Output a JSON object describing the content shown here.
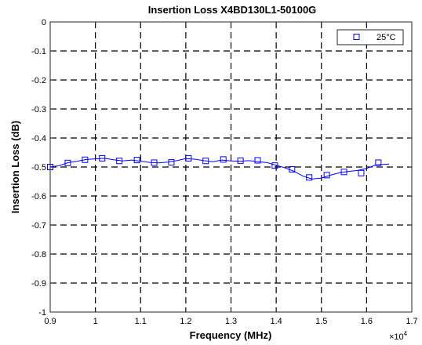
{
  "chart_data": {
    "type": "line",
    "title": "Insertion Loss  X4BD130L1-50100G",
    "xlabel": "Frequency (MHz)",
    "ylabel": "Insertion Loss (dB)",
    "x_multiplier_label": "×10",
    "x_multiplier_exponent": "4",
    "xlim": [
      0.9,
      1.7
    ],
    "ylim": [
      -1,
      0
    ],
    "xticks": [
      0.9,
      1.0,
      1.1,
      1.2,
      1.3,
      1.4,
      1.5,
      1.6,
      1.7
    ],
    "xtick_labels": [
      "0.9",
      "1",
      "1.1",
      "1.2",
      "1.3",
      "1.4",
      "1.5",
      "1.6",
      "1.7"
    ],
    "yticks": [
      0,
      -0.1,
      -0.2,
      -0.3,
      -0.4,
      -0.5,
      -0.6,
      -0.7,
      -0.8,
      -0.9,
      -1
    ],
    "ytick_labels": [
      "0",
      "-0.1",
      "-0.2",
      "-0.3",
      "-0.4",
      "-0.5",
      "-0.6",
      "-0.7",
      "-0.8",
      "-0.9",
      "-1"
    ],
    "grid": true,
    "grid_style": "dashed",
    "legend_position": "top-right",
    "series": [
      {
        "name": "25°C",
        "color": "#0000ff",
        "marker": "square",
        "x": [
          0.9,
          0.92,
          0.94,
          0.96,
          0.98,
          1.0,
          1.02,
          1.04,
          1.06,
          1.08,
          1.1,
          1.12,
          1.14,
          1.16,
          1.18,
          1.2,
          1.22,
          1.24,
          1.26,
          1.28,
          1.3,
          1.32,
          1.34,
          1.36,
          1.38,
          1.4,
          1.42,
          1.44,
          1.46,
          1.48,
          1.5,
          1.52,
          1.54,
          1.56,
          1.58,
          1.6,
          1.62,
          1.65
        ],
        "y": [
          -0.5,
          -0.495,
          -0.485,
          -0.48,
          -0.474,
          -0.472,
          -0.47,
          -0.475,
          -0.479,
          -0.476,
          -0.48,
          -0.484,
          -0.486,
          -0.483,
          -0.478,
          -0.471,
          -0.473,
          -0.478,
          -0.482,
          -0.476,
          -0.479,
          -0.48,
          -0.478,
          -0.482,
          -0.485,
          -0.494,
          -0.503,
          -0.515,
          -0.532,
          -0.541,
          -0.538,
          -0.528,
          -0.52,
          -0.515,
          -0.512,
          -0.505,
          -0.493,
          -0.49
        ]
      }
    ],
    "markers": {
      "x": [
        0.9,
        0.939,
        0.977,
        1.015,
        1.053,
        1.092,
        1.13,
        1.168,
        1.206,
        1.244,
        1.283,
        1.321,
        1.359,
        1.397,
        1.435,
        1.473,
        1.512,
        1.55,
        1.588,
        1.626
      ],
      "y": [
        -0.5,
        -0.486,
        -0.475,
        -0.47,
        -0.479,
        -0.476,
        -0.485,
        -0.484,
        -0.47,
        -0.479,
        -0.474,
        -0.478,
        -0.477,
        -0.495,
        -0.508,
        -0.536,
        -0.528,
        -0.517,
        -0.521,
        -0.485
      ]
    }
  }
}
